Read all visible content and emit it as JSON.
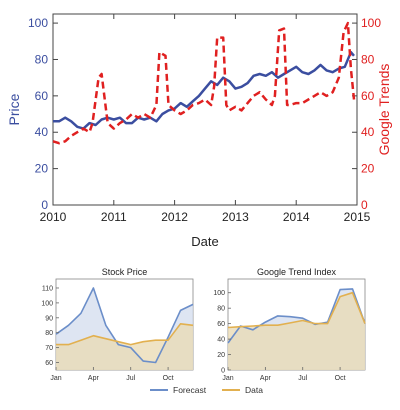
{
  "chart_data": [
    {
      "id": "main",
      "type": "line",
      "xlabel": "Date",
      "ylabel": "Price",
      "y2label": "Google Trends",
      "xlim": [
        2010,
        2015
      ],
      "ylim": [
        0,
        105
      ],
      "y2lim": [
        0,
        105
      ],
      "x_ticks": [
        "2010",
        "2011",
        "2012",
        "2013",
        "2014",
        "2015"
      ],
      "x_tick_values": [
        2010,
        2011,
        2012,
        2013,
        2014,
        2015
      ],
      "y_ticks": [
        "0",
        "20",
        "40",
        "60",
        "80",
        "100"
      ],
      "y_tick_values": [
        0,
        20,
        40,
        60,
        80,
        100
      ],
      "y2_ticks": [
        "0",
        "20",
        "40",
        "60",
        "80",
        "100"
      ],
      "y2_tick_values": [
        0,
        20,
        40,
        60,
        80,
        100
      ],
      "grid": false,
      "series": [
        {
          "axis": "left",
          "color": "#3b4ea0",
          "style": "solid",
          "x": [
            2010.0,
            2010.1,
            2010.2,
            2010.3,
            2010.4,
            2010.5,
            2010.6,
            2010.7,
            2010.8,
            2010.9,
            2011.0,
            2011.1,
            2011.2,
            2011.3,
            2011.4,
            2011.5,
            2011.6,
            2011.7,
            2011.8,
            2011.9,
            2012.0,
            2012.1,
            2012.2,
            2012.3,
            2012.4,
            2012.5,
            2012.6,
            2012.7,
            2012.8,
            2012.9,
            2013.0,
            2013.1,
            2013.2,
            2013.3,
            2013.4,
            2013.5,
            2013.6,
            2013.7,
            2013.8,
            2013.9,
            2014.0,
            2014.1,
            2014.2,
            2014.3,
            2014.4,
            2014.5,
            2014.6,
            2014.7,
            2014.8,
            2014.9,
            2014.95
          ],
          "y": [
            46,
            46,
            48,
            46,
            43,
            42,
            45,
            44,
            47,
            48,
            47,
            48,
            45,
            45,
            48,
            47,
            48,
            46,
            50,
            52,
            53,
            56,
            54,
            57,
            60,
            64,
            68,
            66,
            70,
            68,
            64,
            65,
            67,
            71,
            72,
            71,
            73,
            70,
            72,
            74,
            76,
            73,
            72,
            74,
            77,
            74,
            73,
            75,
            76,
            84,
            82
          ]
        },
        {
          "axis": "right",
          "color": "#e02020",
          "style": "dashed",
          "x": [
            2010.0,
            2010.1,
            2010.2,
            2010.3,
            2010.4,
            2010.5,
            2010.6,
            2010.65,
            2010.75,
            2010.8,
            2010.9,
            2011.0,
            2011.1,
            2011.2,
            2011.3,
            2011.4,
            2011.5,
            2011.6,
            2011.7,
            2011.75,
            2011.85,
            2011.9,
            2012.0,
            2012.1,
            2012.2,
            2012.3,
            2012.4,
            2012.5,
            2012.6,
            2012.65,
            2012.7,
            2012.8,
            2012.85,
            2012.9,
            2013.0,
            2013.1,
            2013.2,
            2013.3,
            2013.4,
            2013.5,
            2013.6,
            2013.65,
            2013.72,
            2013.8,
            2013.85,
            2013.9,
            2014.0,
            2014.1,
            2014.2,
            2014.3,
            2014.4,
            2014.5,
            2014.6,
            2014.7,
            2014.78,
            2014.85,
            2014.9,
            2014.95
          ],
          "y": [
            35,
            34,
            35,
            38,
            40,
            42,
            40,
            45,
            70,
            72,
            45,
            42,
            45,
            47,
            50,
            48,
            50,
            48,
            55,
            84,
            82,
            55,
            52,
            50,
            52,
            55,
            56,
            58,
            55,
            65,
            92,
            92,
            55,
            52,
            54,
            52,
            56,
            60,
            62,
            58,
            55,
            60,
            96,
            97,
            55,
            55,
            56,
            56,
            58,
            60,
            62,
            60,
            62,
            70,
            95,
            100,
            75,
            58
          ]
        }
      ]
    },
    {
      "id": "stock",
      "type": "area",
      "title": "Stock Price",
      "xlim": [
        0,
        11
      ],
      "ylim": [
        55,
        112
      ],
      "x_ticks": [
        "Jan",
        "Apr",
        "Jul",
        "Oct"
      ],
      "x_tick_values": [
        0,
        3,
        6,
        9
      ],
      "y_ticks": [
        "60",
        "70",
        "80",
        "90",
        "100",
        "110"
      ],
      "y_tick_values": [
        60,
        70,
        80,
        90,
        100,
        110
      ],
      "series": [
        {
          "name": "Forecast",
          "color": "#6b8ec9",
          "fill": "#d3dcee",
          "x": [
            0,
            1,
            2,
            3,
            4,
            5,
            6,
            7,
            8,
            9,
            10,
            11
          ],
          "y": [
            79,
            85,
            93,
            110,
            85,
            72,
            70,
            61,
            60,
            77,
            95,
            99
          ]
        },
        {
          "name": "Data",
          "color": "#e2b04f",
          "fill": "#ead9b1",
          "x": [
            0,
            1,
            2,
            3,
            4,
            5,
            6,
            7,
            8,
            9,
            10,
            11
          ],
          "y": [
            72,
            72,
            75,
            78,
            76,
            74,
            72,
            74,
            75,
            75,
            86,
            85
          ]
        }
      ]
    },
    {
      "id": "trend",
      "type": "area",
      "title": "Google Trend Index",
      "xlim": [
        0,
        11
      ],
      "ylim": [
        0,
        110
      ],
      "x_ticks": [
        "Jan",
        "Apr",
        "Jul",
        "Oct"
      ],
      "x_tick_values": [
        0,
        3,
        6,
        9
      ],
      "y_ticks": [
        "0",
        "20",
        "40",
        "60",
        "80",
        "100"
      ],
      "y_tick_values": [
        0,
        20,
        40,
        60,
        80,
        100
      ],
      "series": [
        {
          "name": "Forecast",
          "color": "#6b8ec9",
          "fill": "#d3dcee",
          "x": [
            0,
            1,
            2,
            3,
            4,
            5,
            6,
            7,
            8,
            9,
            10,
            11
          ],
          "y": [
            35,
            57,
            52,
            62,
            70,
            69,
            67,
            59,
            62,
            104,
            105,
            60
          ]
        },
        {
          "name": "Data",
          "color": "#e2b04f",
          "fill": "#ead9b1",
          "x": [
            0,
            1,
            2,
            3,
            4,
            5,
            6,
            7,
            8,
            9,
            10,
            11
          ],
          "y": [
            55,
            56,
            57,
            58,
            58,
            61,
            64,
            60,
            60,
            95,
            100,
            60
          ]
        }
      ]
    }
  ],
  "legend": {
    "items": [
      {
        "label": "Forecast",
        "color": "#6b8ec9"
      },
      {
        "label": "Data",
        "color": "#e2b04f"
      }
    ]
  }
}
